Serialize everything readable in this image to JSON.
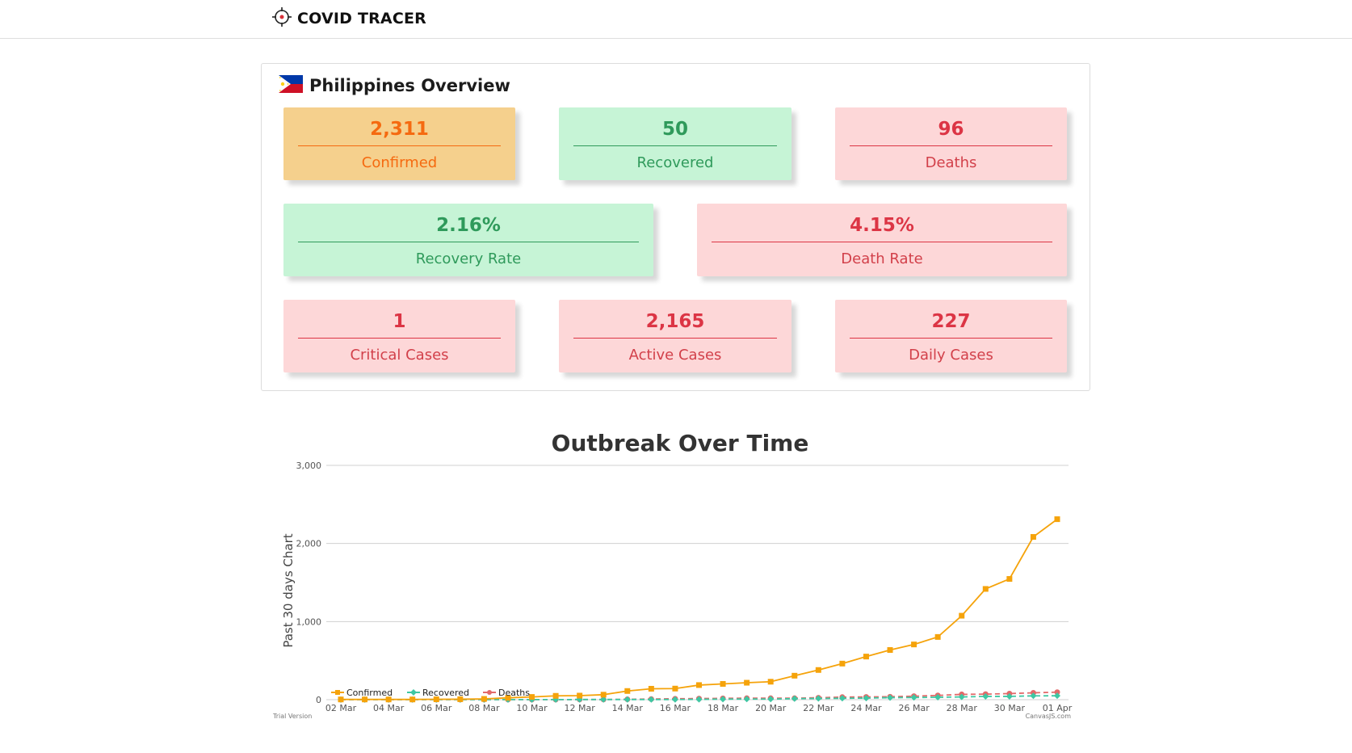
{
  "header": {
    "brand": "COVID TRACER",
    "logo_icon": "crosshair-target-icon"
  },
  "overview": {
    "title": "Philippines Overview",
    "flag_icon": "philippines-flag-icon",
    "cards": {
      "confirmed": {
        "value": "2,311",
        "label": "Confirmed"
      },
      "recovered": {
        "value": "50",
        "label": "Recovered"
      },
      "deaths": {
        "value": "96",
        "label": "Deaths"
      },
      "recovery_rate": {
        "value": "2.16%",
        "label": "Recovery Rate"
      },
      "death_rate": {
        "value": "4.15%",
        "label": "Death Rate"
      },
      "critical": {
        "value": "1",
        "label": "Critical Cases"
      },
      "active": {
        "value": "2,165",
        "label": "Active Cases"
      },
      "daily": {
        "value": "227",
        "label": "Daily Cases"
      }
    }
  },
  "colors": {
    "confirmed": "#f5a30b",
    "recovered": "#3ec7a3",
    "deaths": "#e26a6a",
    "orange_card": "#f5d08d",
    "green_card": "#c6f4d6",
    "red_card": "#fdd7d8"
  },
  "chart_data": {
    "type": "line",
    "title": "Outbreak Over Time",
    "xlabel": "",
    "ylabel": "Past 30 days Chart",
    "ylim": [
      0,
      3000
    ],
    "y_ticks": [
      "0",
      "1,000",
      "2,000",
      "3,000"
    ],
    "x_tick_labels": [
      "02 Mar",
      "04 Mar",
      "06 Mar",
      "08 Mar",
      "10 Mar",
      "12 Mar",
      "14 Mar",
      "16 Mar",
      "18 Mar",
      "20 Mar",
      "22 Mar",
      "24 Mar",
      "26 Mar",
      "28 Mar",
      "30 Mar",
      "01 Apr"
    ],
    "x": [
      "02 Mar",
      "03 Mar",
      "04 Mar",
      "05 Mar",
      "06 Mar",
      "07 Mar",
      "08 Mar",
      "09 Mar",
      "10 Mar",
      "11 Mar",
      "12 Mar",
      "13 Mar",
      "14 Mar",
      "15 Mar",
      "16 Mar",
      "17 Mar",
      "18 Mar",
      "19 Mar",
      "20 Mar",
      "21 Mar",
      "22 Mar",
      "23 Mar",
      "24 Mar",
      "25 Mar",
      "26 Mar",
      "27 Mar",
      "28 Mar",
      "29 Mar",
      "30 Mar",
      "31 Mar",
      "01 Apr"
    ],
    "grid": true,
    "legend_position": "bottom-left",
    "series": [
      {
        "name": "Confirmed",
        "color": "#f5a30b",
        "values": [
          3,
          3,
          3,
          3,
          5,
          6,
          10,
          24,
          35,
          49,
          52,
          64,
          111,
          140,
          142,
          187,
          202,
          217,
          230,
          307,
          380,
          462,
          552,
          636,
          707,
          803,
          1075,
          1418,
          1546,
          2084,
          2311
        ]
      },
      {
        "name": "Recovered",
        "color": "#3ec7a3",
        "values": [
          1,
          1,
          1,
          1,
          1,
          1,
          1,
          1,
          1,
          1,
          2,
          2,
          2,
          2,
          2,
          4,
          7,
          8,
          8,
          13,
          15,
          18,
          20,
          26,
          28,
          31,
          35,
          42,
          42,
          49,
          50
        ]
      },
      {
        "name": "Deaths",
        "color": "#e26a6a",
        "values": [
          1,
          1,
          1,
          1,
          1,
          1,
          1,
          1,
          1,
          1,
          2,
          2,
          5,
          8,
          12,
          14,
          17,
          19,
          19,
          19,
          25,
          33,
          35,
          38,
          45,
          54,
          68,
          71,
          78,
          88,
          96
        ]
      }
    ],
    "footer_left": "Trial Version",
    "footer_right": "CanvasJS.com"
  }
}
